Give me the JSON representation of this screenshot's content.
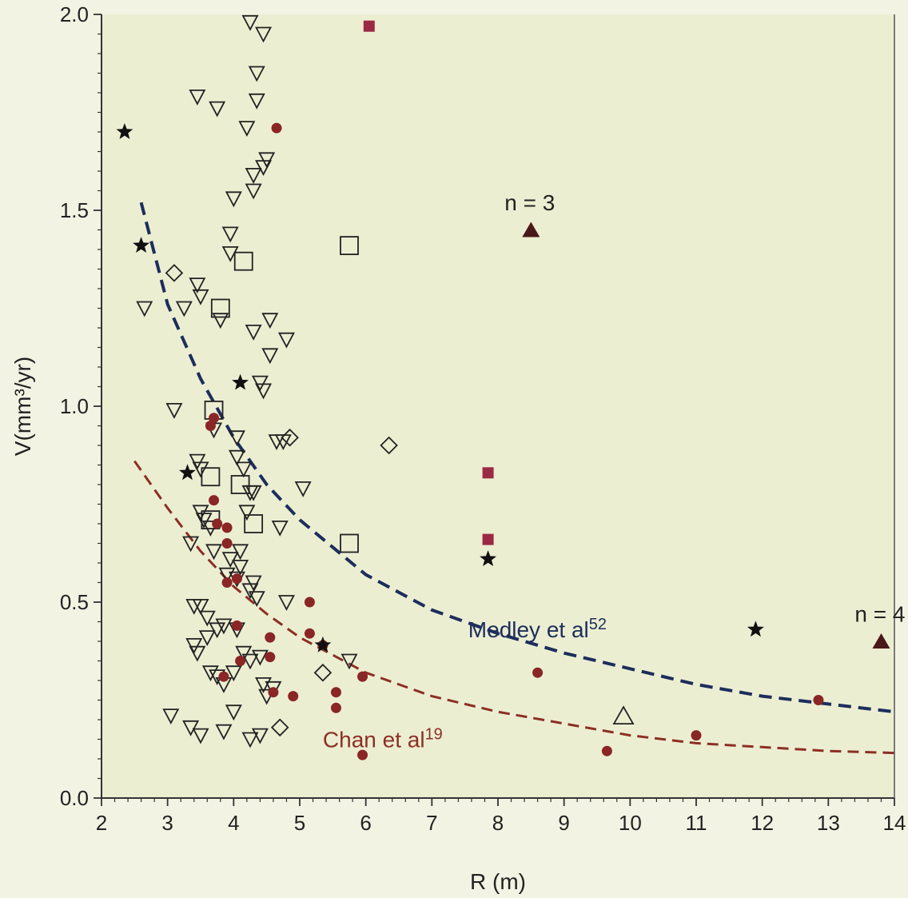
{
  "chart_data": {
    "type": "scatter",
    "title": "",
    "xlabel": "R (m)",
    "ylabel": "V(mm³/yr)",
    "xlim": [
      2,
      14
    ],
    "ylim": [
      0,
      2.0
    ],
    "xticks": [
      2,
      3,
      4,
      5,
      6,
      7,
      8,
      9,
      10,
      11,
      12,
      13,
      14
    ],
    "yticks": [
      0.0,
      0.5,
      1.0,
      1.5,
      2.0
    ],
    "ytick_labels": [
      "0.0",
      "0.5",
      "1.0",
      "1.5",
      "2.0"
    ],
    "grid": false,
    "colors": {
      "background": "#eceed2",
      "outline": "#222222",
      "circle": "#8a2626",
      "square_filled": "#9a2a44",
      "triangle_filled": "#4a1818",
      "star": "#111111",
      "blue_curve": "#1c2e5c",
      "red_curve": "#8c2f24"
    },
    "series": [
      {
        "marker": "open-down-triangle",
        "points": [
          [
            4.25,
            1.98
          ],
          [
            4.45,
            1.95
          ],
          [
            4.35,
            1.85
          ],
          [
            4.35,
            1.78
          ],
          [
            3.45,
            1.79
          ],
          [
            3.75,
            1.76
          ],
          [
            4.2,
            1.71
          ],
          [
            4.5,
            1.63
          ],
          [
            4.45,
            1.61
          ],
          [
            4.3,
            1.59
          ],
          [
            4.3,
            1.55
          ],
          [
            4.0,
            1.53
          ],
          [
            3.95,
            1.44
          ],
          [
            3.95,
            1.39
          ],
          [
            2.65,
            1.25
          ],
          [
            3.25,
            1.25
          ],
          [
            3.45,
            1.31
          ],
          [
            3.5,
            1.28
          ],
          [
            3.8,
            1.22
          ],
          [
            4.3,
            1.19
          ],
          [
            4.55,
            1.22
          ],
          [
            4.8,
            1.17
          ],
          [
            4.55,
            1.13
          ],
          [
            4.4,
            1.06
          ],
          [
            4.45,
            1.04
          ],
          [
            3.1,
            0.99
          ],
          [
            3.7,
            0.94
          ],
          [
            4.05,
            0.92
          ],
          [
            4.05,
            0.87
          ],
          [
            4.65,
            0.91
          ],
          [
            4.75,
            0.91
          ],
          [
            4.15,
            0.84
          ],
          [
            3.45,
            0.86
          ],
          [
            3.5,
            0.84
          ],
          [
            4.25,
            0.78
          ],
          [
            4.3,
            0.78
          ],
          [
            4.2,
            0.73
          ],
          [
            3.5,
            0.73
          ],
          [
            3.55,
            0.71
          ],
          [
            3.65,
            0.69
          ],
          [
            4.7,
            0.69
          ],
          [
            5.05,
            0.79
          ],
          [
            3.35,
            0.65
          ],
          [
            3.7,
            0.63
          ],
          [
            4.1,
            0.63
          ],
          [
            3.95,
            0.61
          ],
          [
            4.1,
            0.59
          ],
          [
            4.05,
            0.56
          ],
          [
            3.9,
            0.57
          ],
          [
            4.3,
            0.55
          ],
          [
            4.35,
            0.51
          ],
          [
            4.25,
            0.53
          ],
          [
            3.4,
            0.49
          ],
          [
            3.5,
            0.49
          ],
          [
            3.6,
            0.46
          ],
          [
            3.75,
            0.43
          ],
          [
            3.85,
            0.44
          ],
          [
            4.05,
            0.43
          ],
          [
            3.6,
            0.41
          ],
          [
            3.4,
            0.39
          ],
          [
            3.45,
            0.37
          ],
          [
            4.15,
            0.37
          ],
          [
            4.25,
            0.35
          ],
          [
            4.4,
            0.36
          ],
          [
            3.65,
            0.32
          ],
          [
            3.75,
            0.31
          ],
          [
            3.85,
            0.29
          ],
          [
            4.0,
            0.32
          ],
          [
            4.45,
            0.29
          ],
          [
            4.5,
            0.26
          ],
          [
            4.6,
            0.28
          ],
          [
            4.8,
            0.5
          ],
          [
            5.75,
            0.35
          ],
          [
            3.05,
            0.21
          ],
          [
            3.35,
            0.18
          ],
          [
            3.5,
            0.16
          ],
          [
            3.85,
            0.17
          ],
          [
            4.0,
            0.22
          ],
          [
            4.25,
            0.15
          ],
          [
            4.4,
            0.16
          ]
        ]
      },
      {
        "marker": "open-square",
        "points": [
          [
            5.75,
            1.41
          ],
          [
            4.15,
            1.37
          ],
          [
            3.8,
            1.25
          ],
          [
            3.7,
            0.99
          ],
          [
            3.65,
            0.82
          ],
          [
            4.1,
            0.8
          ],
          [
            3.65,
            0.71
          ],
          [
            4.3,
            0.7
          ],
          [
            5.75,
            0.65
          ]
        ]
      },
      {
        "marker": "open-diamond",
        "points": [
          [
            3.1,
            1.34
          ],
          [
            4.85,
            0.92
          ],
          [
            6.35,
            0.9
          ],
          [
            5.35,
            0.32
          ],
          [
            4.7,
            0.18
          ]
        ]
      },
      {
        "marker": "open-up-triangle",
        "points": [
          [
            9.9,
            0.21
          ]
        ]
      },
      {
        "marker": "filled-circle",
        "points": [
          [
            4.65,
            1.71
          ],
          [
            3.7,
            0.97
          ],
          [
            3.65,
            0.95
          ],
          [
            3.7,
            0.76
          ],
          [
            3.75,
            0.7
          ],
          [
            3.9,
            0.69
          ],
          [
            3.9,
            0.65
          ],
          [
            4.05,
            0.56
          ],
          [
            3.9,
            0.55
          ],
          [
            4.05,
            0.44
          ],
          [
            4.55,
            0.41
          ],
          [
            4.1,
            0.35
          ],
          [
            4.55,
            0.36
          ],
          [
            3.85,
            0.31
          ],
          [
            4.6,
            0.27
          ],
          [
            4.9,
            0.26
          ],
          [
            5.15,
            0.5
          ],
          [
            5.15,
            0.42
          ],
          [
            5.35,
            0.39
          ],
          [
            5.55,
            0.27
          ],
          [
            5.55,
            0.23
          ],
          [
            5.95,
            0.31
          ],
          [
            5.95,
            0.11
          ],
          [
            8.6,
            0.32
          ],
          [
            9.65,
            0.12
          ],
          [
            11.0,
            0.16
          ],
          [
            12.85,
            0.25
          ]
        ]
      },
      {
        "marker": "filled-square",
        "points": [
          [
            6.05,
            1.97
          ],
          [
            7.85,
            0.83
          ],
          [
            7.85,
            0.66
          ]
        ]
      },
      {
        "marker": "filled-up-triangle",
        "points": [
          [
            8.5,
            1.45
          ],
          [
            13.8,
            0.4
          ]
        ]
      },
      {
        "marker": "star",
        "points": [
          [
            2.35,
            1.7
          ],
          [
            2.6,
            1.41
          ],
          [
            4.1,
            1.06
          ],
          [
            3.3,
            0.83
          ],
          [
            7.85,
            0.61
          ],
          [
            5.35,
            0.39
          ],
          [
            11.9,
            0.43
          ]
        ]
      }
    ],
    "curves": [
      {
        "name": "Medley et al52",
        "label_main": "Medley et al",
        "label_sup": "52",
        "color": "#1c2e5c",
        "points": [
          [
            2.6,
            1.52
          ],
          [
            3.0,
            1.26
          ],
          [
            3.5,
            1.07
          ],
          [
            4.0,
            0.92
          ],
          [
            4.5,
            0.8
          ],
          [
            5.0,
            0.71
          ],
          [
            6.0,
            0.57
          ],
          [
            7.0,
            0.48
          ],
          [
            8.0,
            0.42
          ],
          [
            9.0,
            0.37
          ],
          [
            10.0,
            0.33
          ],
          [
            11.0,
            0.29
          ],
          [
            12.0,
            0.26
          ],
          [
            13.0,
            0.24
          ],
          [
            14.0,
            0.22
          ]
        ]
      },
      {
        "name": "Chan et al19",
        "label_main": "Chan et al",
        "label_sup": "19",
        "color": "#8c2f24",
        "points": [
          [
            2.5,
            0.86
          ],
          [
            3.0,
            0.74
          ],
          [
            3.5,
            0.63
          ],
          [
            4.0,
            0.54
          ],
          [
            4.5,
            0.47
          ],
          [
            5.0,
            0.41
          ],
          [
            6.0,
            0.32
          ],
          [
            7.0,
            0.26
          ],
          [
            8.0,
            0.22
          ],
          [
            9.0,
            0.19
          ],
          [
            10.0,
            0.16
          ],
          [
            11.0,
            0.14
          ],
          [
            12.0,
            0.13
          ],
          [
            13.0,
            0.12
          ],
          [
            14.0,
            0.115
          ]
        ]
      }
    ],
    "annotations": [
      {
        "text": "n = 3",
        "x": 8.1,
        "y": 1.5
      },
      {
        "text": "n = 4",
        "x": 13.4,
        "y": 0.45
      }
    ]
  }
}
